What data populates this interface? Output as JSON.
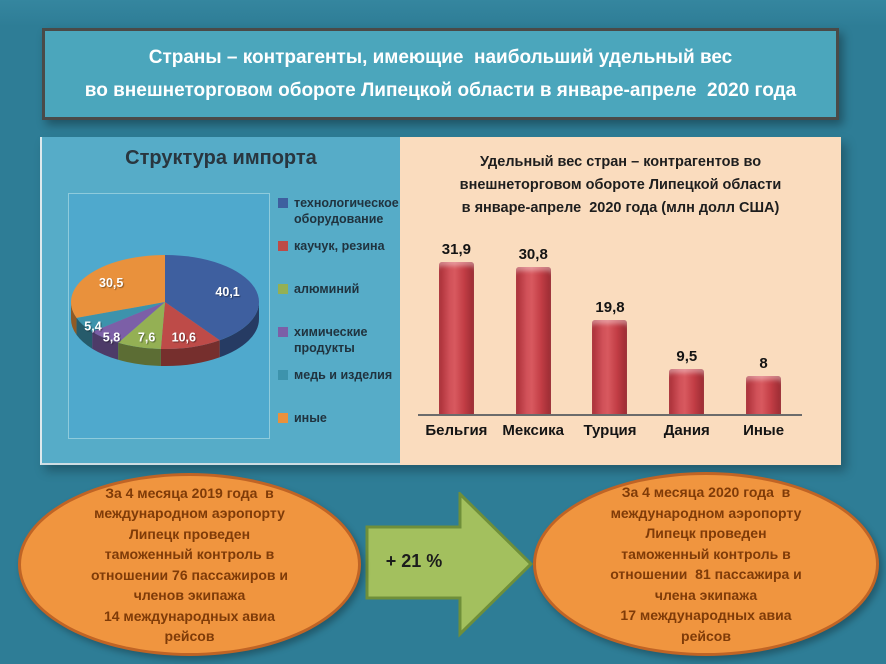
{
  "slide_title": "Страны – контрагенты, имеющие  наибольший удельный вес\nво внешнеторговом обороте Липецкой области в январе-апреле  2020 года",
  "colors": {
    "slide_background": "#2E7D96",
    "banner_fill": "#4BA6BC",
    "banner_border": "#4A4A48",
    "pie_panel_fill": "#56ACC8",
    "pie_plot_fill": "#4FA9CD",
    "bar_panel_fill": "#FADCBE",
    "bar_fill": "#C2444C",
    "ellipse_fill": "#F0953F",
    "ellipse_border": "#C06425",
    "ellipse_text": "#7F3B08",
    "arrow_fill": "#A3C05E",
    "arrow_border": "#6F8F3A"
  },
  "chart_data": [
    {
      "type": "pie",
      "style": "3d",
      "title": "Структура импорта",
      "labels": [
        "технологическое оборудование",
        "каучук, резина",
        "алюминий",
        "химические продукты",
        "медь и изделия",
        "иные"
      ],
      "values": [
        40.1,
        10.6,
        7.6,
        5.8,
        5.4,
        30.5
      ],
      "value_labels": [
        "40,1",
        "10,6",
        "7,6",
        "5,8",
        "5,4",
        "30,5"
      ],
      "colors": [
        "#3E5F9F",
        "#BE4B48",
        "#94B054",
        "#7C5FA7",
        "#3D93AC",
        "#E9913C"
      ],
      "legend_position": "right"
    },
    {
      "type": "bar",
      "title": "Удельный вес стран – контрагентов во\nвнешнеторговом обороте Липецкой области\nв январе-апреле  2020 года (млн долл США)",
      "categories": [
        "Бельгия",
        "Мексика",
        "Турция",
        "Дания",
        "Иные"
      ],
      "values": [
        31.9,
        30.8,
        19.8,
        9.5,
        8
      ],
      "value_labels": [
        "31,9",
        "30,8",
        "19,8",
        "9,5",
        "8"
      ],
      "bar_color": "#C2444C",
      "ylim": [
        0,
        35
      ],
      "grid": false,
      "legend": "none"
    }
  ],
  "infographic": {
    "left_ellipse": {
      "text": "За 4 месяца 2019 года  в\nмеждународном аэропорту\nЛипецк проведен\nтаможенный контроль в\nотношении 76 пассажиров и\nчленов экипажа\n14 международных авиа\nрейсов"
    },
    "arrow_label": "+ 21 %",
    "right_ellipse": {
      "text": "За 4 месяца 2020 года  в\nмеждународном аэропорту\nЛипецк проведен\nтаможенный контроль в\nотношении  81 пассажира и\nчлена экипажа\n17 международных авиа\nрейсов"
    }
  }
}
